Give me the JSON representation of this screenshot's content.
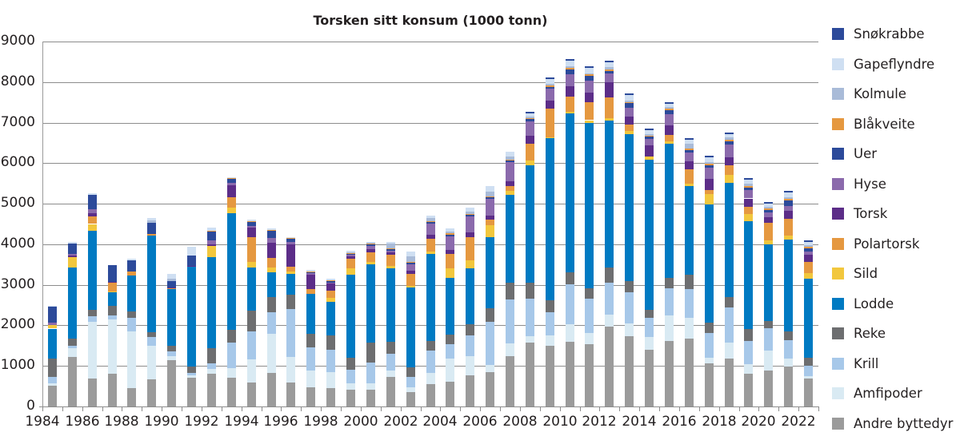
{
  "chart_data": {
    "type": "bar",
    "stacked": true,
    "title": "Torsken sitt konsum (1000 tonn)",
    "xlabel": "",
    "ylabel": "",
    "ylim": [
      0,
      9000
    ],
    "yticks": [
      0,
      1000,
      2000,
      3000,
      4000,
      5000,
      6000,
      7000,
      8000,
      9000
    ],
    "xtick_labels": [
      "1984",
      "1986",
      "1988",
      "1990",
      "1992",
      "1994",
      "1996",
      "1998",
      "2000",
      "2002",
      "2004",
      "2006",
      "2008",
      "2010",
      "2012",
      "2014",
      "2016",
      "2018",
      "2020",
      "2022"
    ],
    "grid": true,
    "legend_position": "right",
    "categories": [
      "1984",
      "1985",
      "1986",
      "1987",
      "1988",
      "1989",
      "1990",
      "1991",
      "1992",
      "1993",
      "1994",
      "1995",
      "1996",
      "1997",
      "1998",
      "1999",
      "2000",
      "2001",
      "2002",
      "2003",
      "2004",
      "2005",
      "2006",
      "2007",
      "2008",
      "2009",
      "2010",
      "2011",
      "2012",
      "2013",
      "2014",
      "2015",
      "2016",
      "2017",
      "2018",
      "2019",
      "2020",
      "2021",
      "2022"
    ],
    "series": [
      {
        "name": "Andre byttedyr",
        "color": "#9b9b9b",
        "values": [
          520,
          1230,
          680,
          800,
          450,
          670,
          1150,
          700,
          810,
          700,
          600,
          830,
          600,
          480,
          450,
          420,
          420,
          720,
          360,
          550,
          620,
          760,
          850,
          1240,
          1580,
          1490,
          1600,
          1540,
          1970,
          1740,
          1390,
          1620,
          1680,
          1060,
          1190,
          800,
          880,
          980,
          680
        ]
      },
      {
        "name": "Amfipoder",
        "color": "#d9eaf3",
        "values": [
          60,
          200,
          1400,
          1350,
          1400,
          820,
          100,
          60,
          120,
          240,
          560,
          960,
          620,
          400,
          400,
          160,
          160,
          170,
          120,
          270,
          560,
          480,
          180,
          320,
          160,
          260,
          420,
          270,
          290,
          300,
          330,
          620,
          500,
          140,
          380,
          240,
          490,
          200,
          60
        ]
      },
      {
        "name": "Krill",
        "color": "#a7c8e9",
        "values": [
          140,
          60,
          140,
          100,
          330,
          230,
          100,
          60,
          140,
          640,
          700,
          540,
          1180,
          580,
          540,
          320,
          500,
          400,
          240,
          560,
          360,
          520,
          1050,
          1070,
          920,
          570,
          1000,
          840,
          800,
          780,
          460,
          680,
          720,
          610,
          880,
          570,
          560,
          460,
          270
        ]
      },
      {
        "name": "Reke",
        "color": "#6d6e70",
        "values": [
          460,
          180,
          160,
          240,
          160,
          120,
          150,
          170,
          360,
          310,
          510,
          370,
          350,
          340,
          370,
          310,
          500,
          300,
          240,
          240,
          240,
          260,
          350,
          430,
          390,
          290,
          290,
          260,
          360,
          280,
          210,
          260,
          340,
          260,
          240,
          310,
          170,
          210,
          200
        ]
      },
      {
        "name": "Lodde",
        "color": "#007ac2",
        "values": [
          740,
          1760,
          1950,
          330,
          880,
          2380,
          1400,
          2450,
          2250,
          2880,
          1050,
          600,
          520,
          980,
          820,
          2040,
          1930,
          1810,
          1980,
          2150,
          1400,
          1390,
          1740,
          2150,
          2890,
          4000,
          3920,
          4080,
          3640,
          3620,
          3690,
          3290,
          2190,
          2920,
          2820,
          2640,
          1900,
          2270,
          1940
        ]
      },
      {
        "name": "Sild",
        "color": "#f2c73d",
        "values": [
          90,
          260,
          170,
          20,
          0,
          0,
          0,
          0,
          270,
          140,
          150,
          120,
          50,
          0,
          100,
          150,
          60,
          70,
          40,
          60,
          220,
          200,
          300,
          100,
          120,
          20,
          30,
          70,
          50,
          80,
          80,
          60,
          70,
          250,
          210,
          190,
          100,
          90,
          140
        ]
      },
      {
        "name": "Polartorsk",
        "color": "#e59840",
        "values": [
          0,
          0,
          180,
          220,
          110,
          40,
          20,
          0,
          0,
          250,
          600,
          240,
          120,
          120,
          180,
          250,
          240,
          270,
          280,
          300,
          360,
          560,
          130,
          130,
          420,
          720,
          380,
          440,
          520,
          160,
          0,
          160,
          340,
          90,
          220,
          180,
          430,
          410,
          280
        ]
      },
      {
        "name": "Torsk",
        "color": "#5c2d88",
        "values": [
          0,
          40,
          80,
          20,
          0,
          0,
          20,
          20,
          50,
          290,
          250,
          370,
          550,
          340,
          170,
          50,
          60,
          60,
          80,
          100,
          100,
          120,
          100,
          110,
          200,
          190,
          250,
          240,
          370,
          180,
          280,
          250,
          200,
          280,
          200,
          200,
          140,
          200,
          170
        ]
      },
      {
        "name": "Hyse",
        "color": "#8b6aac",
        "values": [
          60,
          40,
          110,
          0,
          0,
          0,
          0,
          0,
          90,
          70,
          40,
          130,
          70,
          40,
          30,
          40,
          90,
          40,
          160,
          280,
          340,
          400,
          420,
          470,
          350,
          290,
          300,
          300,
          220,
          220,
          160,
          260,
          230,
          280,
          310,
          200,
          120,
          120,
          90
        ]
      },
      {
        "name": "Uer",
        "color": "#2c4a9a",
        "values": [
          390,
          240,
          350,
          400,
          280,
          270,
          160,
          260,
          240,
          100,
          90,
          190,
          90,
          40,
          40,
          40,
          40,
          40,
          40,
          40,
          40,
          30,
          30,
          40,
          50,
          50,
          120,
          120,
          60,
          120,
          50,
          100,
          60,
          60,
          80,
          70,
          60,
          140,
          60
        ]
      },
      {
        "name": "Blåkveite",
        "color": "#e59840",
        "values": [
          0,
          0,
          0,
          0,
          0,
          0,
          0,
          0,
          10,
          10,
          20,
          10,
          10,
          10,
          20,
          10,
          10,
          20,
          20,
          20,
          30,
          30,
          30,
          30,
          30,
          30,
          40,
          30,
          40,
          30,
          30,
          40,
          40,
          40,
          50,
          40,
          40,
          40,
          40
        ]
      },
      {
        "name": "Kolmule",
        "color": "#a9bbd8",
        "values": [
          0,
          0,
          0,
          0,
          0,
          60,
          50,
          0,
          0,
          0,
          0,
          0,
          0,
          0,
          0,
          20,
          20,
          110,
          140,
          80,
          40,
          60,
          120,
          80,
          40,
          50,
          30,
          30,
          50,
          40,
          40,
          40,
          100,
          40,
          50,
          60,
          30,
          40,
          50
        ]
      },
      {
        "name": "Gapeflyndre",
        "color": "#cfdff2",
        "values": [
          20,
          40,
          40,
          0,
          30,
          60,
          110,
          210,
          80,
          20,
          40,
          30,
          20,
          30,
          30,
          30,
          30,
          40,
          120,
          50,
          80,
          90,
          140,
          110,
          80,
          110,
          150,
          130,
          120,
          130,
          100,
          90,
          110,
          110,
          80,
          100,
          90,
          120,
          80
        ]
      },
      {
        "name": "Snøkrabbe",
        "color": "#2c4a9a",
        "values": [
          0,
          0,
          0,
          0,
          0,
          0,
          0,
          0,
          0,
          0,
          0,
          0,
          0,
          0,
          0,
          0,
          0,
          0,
          0,
          0,
          0,
          0,
          0,
          0,
          30,
          40,
          40,
          40,
          40,
          40,
          40,
          40,
          40,
          40,
          40,
          40,
          40,
          40,
          40
        ]
      }
    ]
  },
  "legend": {
    "items": [
      {
        "label": "Snøkrabbe",
        "color": "#2c4a9a"
      },
      {
        "label": "Gapeflyndre",
        "color": "#cfdff2"
      },
      {
        "label": "Kolmule",
        "color": "#a9bbd8"
      },
      {
        "label": "Blåkveite",
        "color": "#e59840"
      },
      {
        "label": "Uer",
        "color": "#2c4a9a"
      },
      {
        "label": "Hyse",
        "color": "#8b6aac"
      },
      {
        "label": "Torsk",
        "color": "#5c2d88"
      },
      {
        "label": "Polartorsk",
        "color": "#e59840"
      },
      {
        "label": "Sild",
        "color": "#f2c73d"
      },
      {
        "label": "Lodde",
        "color": "#007ac2"
      },
      {
        "label": "Reke",
        "color": "#6d6e70"
      },
      {
        "label": "Krill",
        "color": "#a7c8e9"
      },
      {
        "label": "Amfipoder",
        "color": "#d9eaf3"
      },
      {
        "label": "Andre byttedyr",
        "color": "#9b9b9b"
      }
    ]
  }
}
